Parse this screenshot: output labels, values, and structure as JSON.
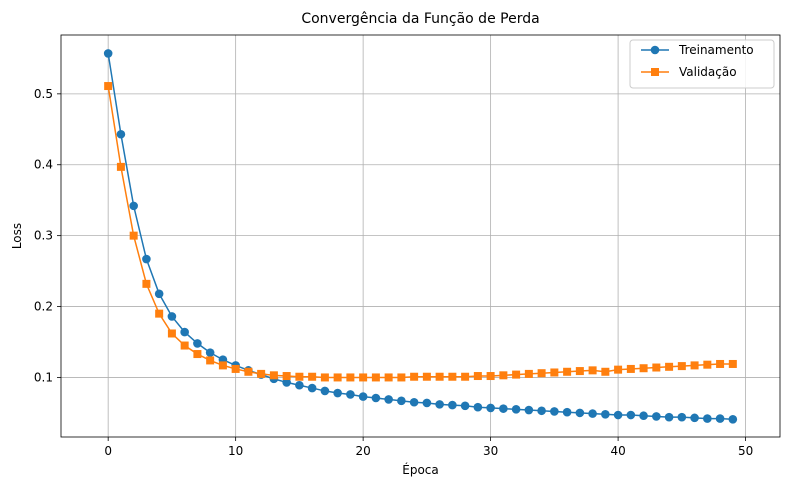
{
  "chart_data": {
    "type": "line",
    "title": "Convergência da Função de Perda",
    "xlabel": "Época",
    "ylabel": "Loss",
    "xlim": [
      -3.7,
      52.7
    ],
    "ylim": [
      0.016,
      0.583
    ],
    "xticks": [
      0,
      10,
      20,
      30,
      40,
      50
    ],
    "yticks": [
      0.1,
      0.2,
      0.3,
      0.4,
      0.5
    ],
    "grid": true,
    "legend_position": "top-right",
    "x": [
      0,
      1,
      2,
      3,
      4,
      5,
      6,
      7,
      8,
      9,
      10,
      11,
      12,
      13,
      14,
      15,
      16,
      17,
      18,
      19,
      20,
      21,
      22,
      23,
      24,
      25,
      26,
      27,
      28,
      29,
      30,
      31,
      32,
      33,
      34,
      35,
      36,
      37,
      38,
      39,
      40,
      41,
      42,
      43,
      44,
      45,
      46,
      47,
      48,
      49
    ],
    "series": [
      {
        "name": "Treinamento",
        "color": "#1f77b4",
        "marker": "circle",
        "values": [
          0.557,
          0.443,
          0.342,
          0.267,
          0.218,
          0.186,
          0.164,
          0.148,
          0.135,
          0.125,
          0.117,
          0.11,
          0.104,
          0.098,
          0.093,
          0.089,
          0.085,
          0.081,
          0.078,
          0.076,
          0.073,
          0.071,
          0.069,
          0.067,
          0.065,
          0.064,
          0.062,
          0.061,
          0.06,
          0.058,
          0.057,
          0.056,
          0.055,
          0.054,
          0.053,
          0.052,
          0.051,
          0.05,
          0.049,
          0.048,
          0.047,
          0.047,
          0.046,
          0.045,
          0.044,
          0.044,
          0.043,
          0.042,
          0.042,
          0.041
        ]
      },
      {
        "name": "Validação",
        "color": "#ff7f0e",
        "marker": "square",
        "values": [
          0.511,
          0.397,
          0.3,
          0.232,
          0.19,
          0.162,
          0.145,
          0.133,
          0.124,
          0.117,
          0.112,
          0.108,
          0.105,
          0.103,
          0.102,
          0.101,
          0.101,
          0.1,
          0.1,
          0.1,
          0.1,
          0.1,
          0.1,
          0.1,
          0.101,
          0.101,
          0.101,
          0.101,
          0.101,
          0.102,
          0.102,
          0.103,
          0.104,
          0.105,
          0.106,
          0.107,
          0.108,
          0.109,
          0.11,
          0.108,
          0.111,
          0.112,
          0.113,
          0.114,
          0.115,
          0.116,
          0.117,
          0.118,
          0.119,
          0.119
        ]
      }
    ]
  }
}
